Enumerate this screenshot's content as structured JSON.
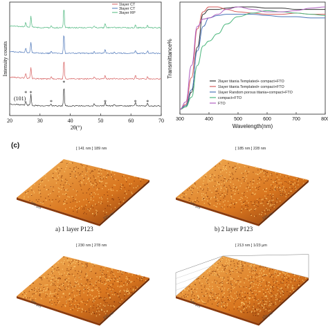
{
  "chart_data": [
    {
      "type": "line",
      "panel": "xrd",
      "xlabel": "2θ(°)",
      "ylabel": "Intensity counts",
      "xlim": [
        20,
        70
      ],
      "xticks": [
        20,
        30,
        40,
        50,
        60,
        70
      ],
      "legend": [
        "1layer CT",
        "3layer CT",
        "3layer RP"
      ],
      "legend_position": "top-right",
      "peak_label": "(101)",
      "peak_marker": "*",
      "peak_positions": [
        25.3,
        27.0,
        33.7,
        37.9,
        51.5,
        61.5,
        65.5
      ],
      "series": [
        {
          "name": "",
          "color": "#4cb77d",
          "offset": 3
        },
        {
          "name": "",
          "color": "#4a74b8",
          "offset": 2
        },
        {
          "name": "",
          "color": "#d65c5c",
          "offset": 1
        },
        {
          "name": "",
          "color": "#333333",
          "offset": 0
        }
      ]
    },
    {
      "type": "line",
      "panel": "transmittance",
      "xlabel": "Wavelength(nm)",
      "ylabel": "Transmittance%",
      "xlim": [
        300,
        800
      ],
      "xticks": [
        300,
        400,
        500,
        600,
        700,
        800
      ],
      "legend_position": "bottom-right",
      "series": [
        {
          "name": "2layer titania Templated+ compact+FTO",
          "color": "#333333",
          "x": [
            300,
            320,
            340,
            360,
            380,
            400,
            430,
            460,
            500,
            550,
            600,
            650,
            700,
            750,
            800
          ],
          "y": [
            4,
            6,
            18,
            55,
            82,
            86,
            86,
            87,
            88,
            88,
            87,
            87,
            86,
            86,
            86
          ]
        },
        {
          "name": "1layer titania Templated+ compact+FTO",
          "color": "#d65c5c",
          "x": [
            300,
            320,
            340,
            360,
            380,
            400,
            430,
            460,
            500,
            550,
            600,
            650,
            700,
            750,
            800
          ],
          "y": [
            4,
            8,
            30,
            70,
            84,
            88,
            88,
            86,
            84,
            83,
            82,
            82,
            83,
            82,
            82
          ]
        },
        {
          "name": "1layer Random porous titania+compact+FTO",
          "color": "#4a74b8",
          "x": [
            300,
            320,
            340,
            360,
            380,
            400,
            430,
            460,
            500,
            550,
            600,
            650,
            700,
            750,
            800
          ],
          "y": [
            4,
            7,
            20,
            52,
            72,
            79,
            81,
            82,
            82,
            82,
            81,
            80,
            80,
            79,
            79
          ]
        },
        {
          "name": "compact+FTO",
          "color": "#4cb77d",
          "x": [
            300,
            320,
            340,
            360,
            380,
            400,
            430,
            460,
            500,
            550,
            600,
            650,
            700,
            750,
            800
          ],
          "y": [
            4,
            6,
            14,
            40,
            56,
            60,
            66,
            74,
            80,
            83,
            85,
            84,
            83,
            82,
            81
          ]
        },
        {
          "name": "FTO",
          "color": "#b05fc0",
          "x": [
            300,
            320,
            340,
            360,
            380,
            400,
            430,
            460,
            500,
            550,
            600,
            650,
            700,
            750,
            800
          ],
          "y": [
            4,
            10,
            40,
            72,
            78,
            79,
            82,
            86,
            88,
            86,
            84,
            84,
            85,
            87,
            88
          ]
        }
      ]
    }
  ],
  "afm": {
    "panel_label": "(c)",
    "images": [
      {
        "scale": "[ 141 nm ] 189 nm",
        "caption": "a) 1 layer P123",
        "axis_y": "100 μm",
        "axis_x": "100 μm",
        "box": false
      },
      {
        "scale": "[ 185 nm ] 228 nm",
        "caption": "b) 2 layer P123",
        "axis_y": "100 μm",
        "axis_x": "100 μm",
        "box": false
      },
      {
        "scale": "[ 230 nm ] 278 nm",
        "caption": "",
        "axis_y": "100 μm",
        "axis_x": "100 μm",
        "box": false
      },
      {
        "scale": "[ 213 nm ] 1/23 μm",
        "caption": "",
        "axis_y": "100 μm",
        "axis_x": "100 μm",
        "box": true
      }
    ]
  },
  "colors": {
    "afm_light": "#f4b35a",
    "afm_mid": "#d9761f",
    "afm_dark": "#8a3a0c"
  }
}
